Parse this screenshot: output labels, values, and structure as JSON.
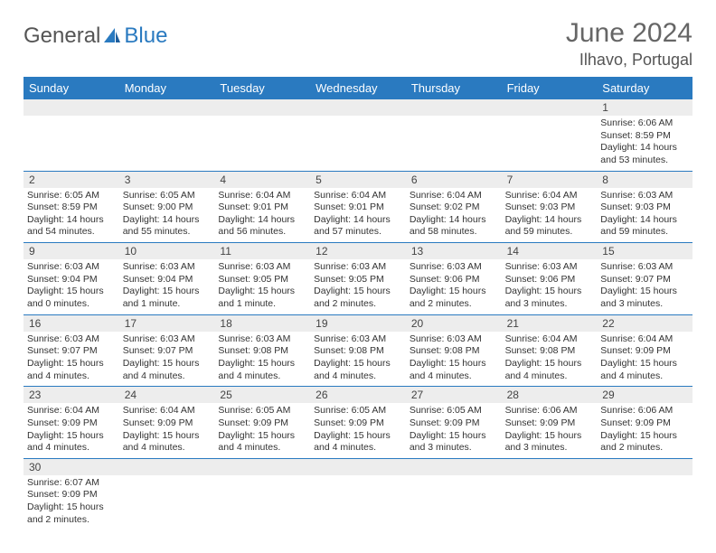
{
  "logo": {
    "part1": "General",
    "part2": "Blue"
  },
  "title": "June 2024",
  "location": "Ilhavo, Portugal",
  "colors": {
    "header_bg": "#2a7ac0",
    "header_text": "#ffffff",
    "daynum_bg": "#ededed",
    "border": "#2a7ac0",
    "page_bg": "#ffffff",
    "body_text": "#333333",
    "title_text": "#666666"
  },
  "weekdays": [
    "Sunday",
    "Monday",
    "Tuesday",
    "Wednesday",
    "Thursday",
    "Friday",
    "Saturday"
  ],
  "weeks": [
    {
      "nums": [
        "",
        "",
        "",
        "",
        "",
        "",
        "1"
      ],
      "cells": [
        null,
        null,
        null,
        null,
        null,
        null,
        {
          "sr": "Sunrise: 6:06 AM",
          "ss": "Sunset: 8:59 PM",
          "d1": "Daylight: 14 hours",
          "d2": "and 53 minutes."
        }
      ]
    },
    {
      "nums": [
        "2",
        "3",
        "4",
        "5",
        "6",
        "7",
        "8"
      ],
      "cells": [
        {
          "sr": "Sunrise: 6:05 AM",
          "ss": "Sunset: 8:59 PM",
          "d1": "Daylight: 14 hours",
          "d2": "and 54 minutes."
        },
        {
          "sr": "Sunrise: 6:05 AM",
          "ss": "Sunset: 9:00 PM",
          "d1": "Daylight: 14 hours",
          "d2": "and 55 minutes."
        },
        {
          "sr": "Sunrise: 6:04 AM",
          "ss": "Sunset: 9:01 PM",
          "d1": "Daylight: 14 hours",
          "d2": "and 56 minutes."
        },
        {
          "sr": "Sunrise: 6:04 AM",
          "ss": "Sunset: 9:01 PM",
          "d1": "Daylight: 14 hours",
          "d2": "and 57 minutes."
        },
        {
          "sr": "Sunrise: 6:04 AM",
          "ss": "Sunset: 9:02 PM",
          "d1": "Daylight: 14 hours",
          "d2": "and 58 minutes."
        },
        {
          "sr": "Sunrise: 6:04 AM",
          "ss": "Sunset: 9:03 PM",
          "d1": "Daylight: 14 hours",
          "d2": "and 59 minutes."
        },
        {
          "sr": "Sunrise: 6:03 AM",
          "ss": "Sunset: 9:03 PM",
          "d1": "Daylight: 14 hours",
          "d2": "and 59 minutes."
        }
      ]
    },
    {
      "nums": [
        "9",
        "10",
        "11",
        "12",
        "13",
        "14",
        "15"
      ],
      "cells": [
        {
          "sr": "Sunrise: 6:03 AM",
          "ss": "Sunset: 9:04 PM",
          "d1": "Daylight: 15 hours",
          "d2": "and 0 minutes."
        },
        {
          "sr": "Sunrise: 6:03 AM",
          "ss": "Sunset: 9:04 PM",
          "d1": "Daylight: 15 hours",
          "d2": "and 1 minute."
        },
        {
          "sr": "Sunrise: 6:03 AM",
          "ss": "Sunset: 9:05 PM",
          "d1": "Daylight: 15 hours",
          "d2": "and 1 minute."
        },
        {
          "sr": "Sunrise: 6:03 AM",
          "ss": "Sunset: 9:05 PM",
          "d1": "Daylight: 15 hours",
          "d2": "and 2 minutes."
        },
        {
          "sr": "Sunrise: 6:03 AM",
          "ss": "Sunset: 9:06 PM",
          "d1": "Daylight: 15 hours",
          "d2": "and 2 minutes."
        },
        {
          "sr": "Sunrise: 6:03 AM",
          "ss": "Sunset: 9:06 PM",
          "d1": "Daylight: 15 hours",
          "d2": "and 3 minutes."
        },
        {
          "sr": "Sunrise: 6:03 AM",
          "ss": "Sunset: 9:07 PM",
          "d1": "Daylight: 15 hours",
          "d2": "and 3 minutes."
        }
      ]
    },
    {
      "nums": [
        "16",
        "17",
        "18",
        "19",
        "20",
        "21",
        "22"
      ],
      "cells": [
        {
          "sr": "Sunrise: 6:03 AM",
          "ss": "Sunset: 9:07 PM",
          "d1": "Daylight: 15 hours",
          "d2": "and 4 minutes."
        },
        {
          "sr": "Sunrise: 6:03 AM",
          "ss": "Sunset: 9:07 PM",
          "d1": "Daylight: 15 hours",
          "d2": "and 4 minutes."
        },
        {
          "sr": "Sunrise: 6:03 AM",
          "ss": "Sunset: 9:08 PM",
          "d1": "Daylight: 15 hours",
          "d2": "and 4 minutes."
        },
        {
          "sr": "Sunrise: 6:03 AM",
          "ss": "Sunset: 9:08 PM",
          "d1": "Daylight: 15 hours",
          "d2": "and 4 minutes."
        },
        {
          "sr": "Sunrise: 6:03 AM",
          "ss": "Sunset: 9:08 PM",
          "d1": "Daylight: 15 hours",
          "d2": "and 4 minutes."
        },
        {
          "sr": "Sunrise: 6:04 AM",
          "ss": "Sunset: 9:08 PM",
          "d1": "Daylight: 15 hours",
          "d2": "and 4 minutes."
        },
        {
          "sr": "Sunrise: 6:04 AM",
          "ss": "Sunset: 9:09 PM",
          "d1": "Daylight: 15 hours",
          "d2": "and 4 minutes."
        }
      ]
    },
    {
      "nums": [
        "23",
        "24",
        "25",
        "26",
        "27",
        "28",
        "29"
      ],
      "cells": [
        {
          "sr": "Sunrise: 6:04 AM",
          "ss": "Sunset: 9:09 PM",
          "d1": "Daylight: 15 hours",
          "d2": "and 4 minutes."
        },
        {
          "sr": "Sunrise: 6:04 AM",
          "ss": "Sunset: 9:09 PM",
          "d1": "Daylight: 15 hours",
          "d2": "and 4 minutes."
        },
        {
          "sr": "Sunrise: 6:05 AM",
          "ss": "Sunset: 9:09 PM",
          "d1": "Daylight: 15 hours",
          "d2": "and 4 minutes."
        },
        {
          "sr": "Sunrise: 6:05 AM",
          "ss": "Sunset: 9:09 PM",
          "d1": "Daylight: 15 hours",
          "d2": "and 4 minutes."
        },
        {
          "sr": "Sunrise: 6:05 AM",
          "ss": "Sunset: 9:09 PM",
          "d1": "Daylight: 15 hours",
          "d2": "and 3 minutes."
        },
        {
          "sr": "Sunrise: 6:06 AM",
          "ss": "Sunset: 9:09 PM",
          "d1": "Daylight: 15 hours",
          "d2": "and 3 minutes."
        },
        {
          "sr": "Sunrise: 6:06 AM",
          "ss": "Sunset: 9:09 PM",
          "d1": "Daylight: 15 hours",
          "d2": "and 2 minutes."
        }
      ]
    },
    {
      "nums": [
        "30",
        "",
        "",
        "",
        "",
        "",
        ""
      ],
      "cells": [
        {
          "sr": "Sunrise: 6:07 AM",
          "ss": "Sunset: 9:09 PM",
          "d1": "Daylight: 15 hours",
          "d2": "and 2 minutes."
        },
        null,
        null,
        null,
        null,
        null,
        null
      ],
      "last": true
    }
  ]
}
